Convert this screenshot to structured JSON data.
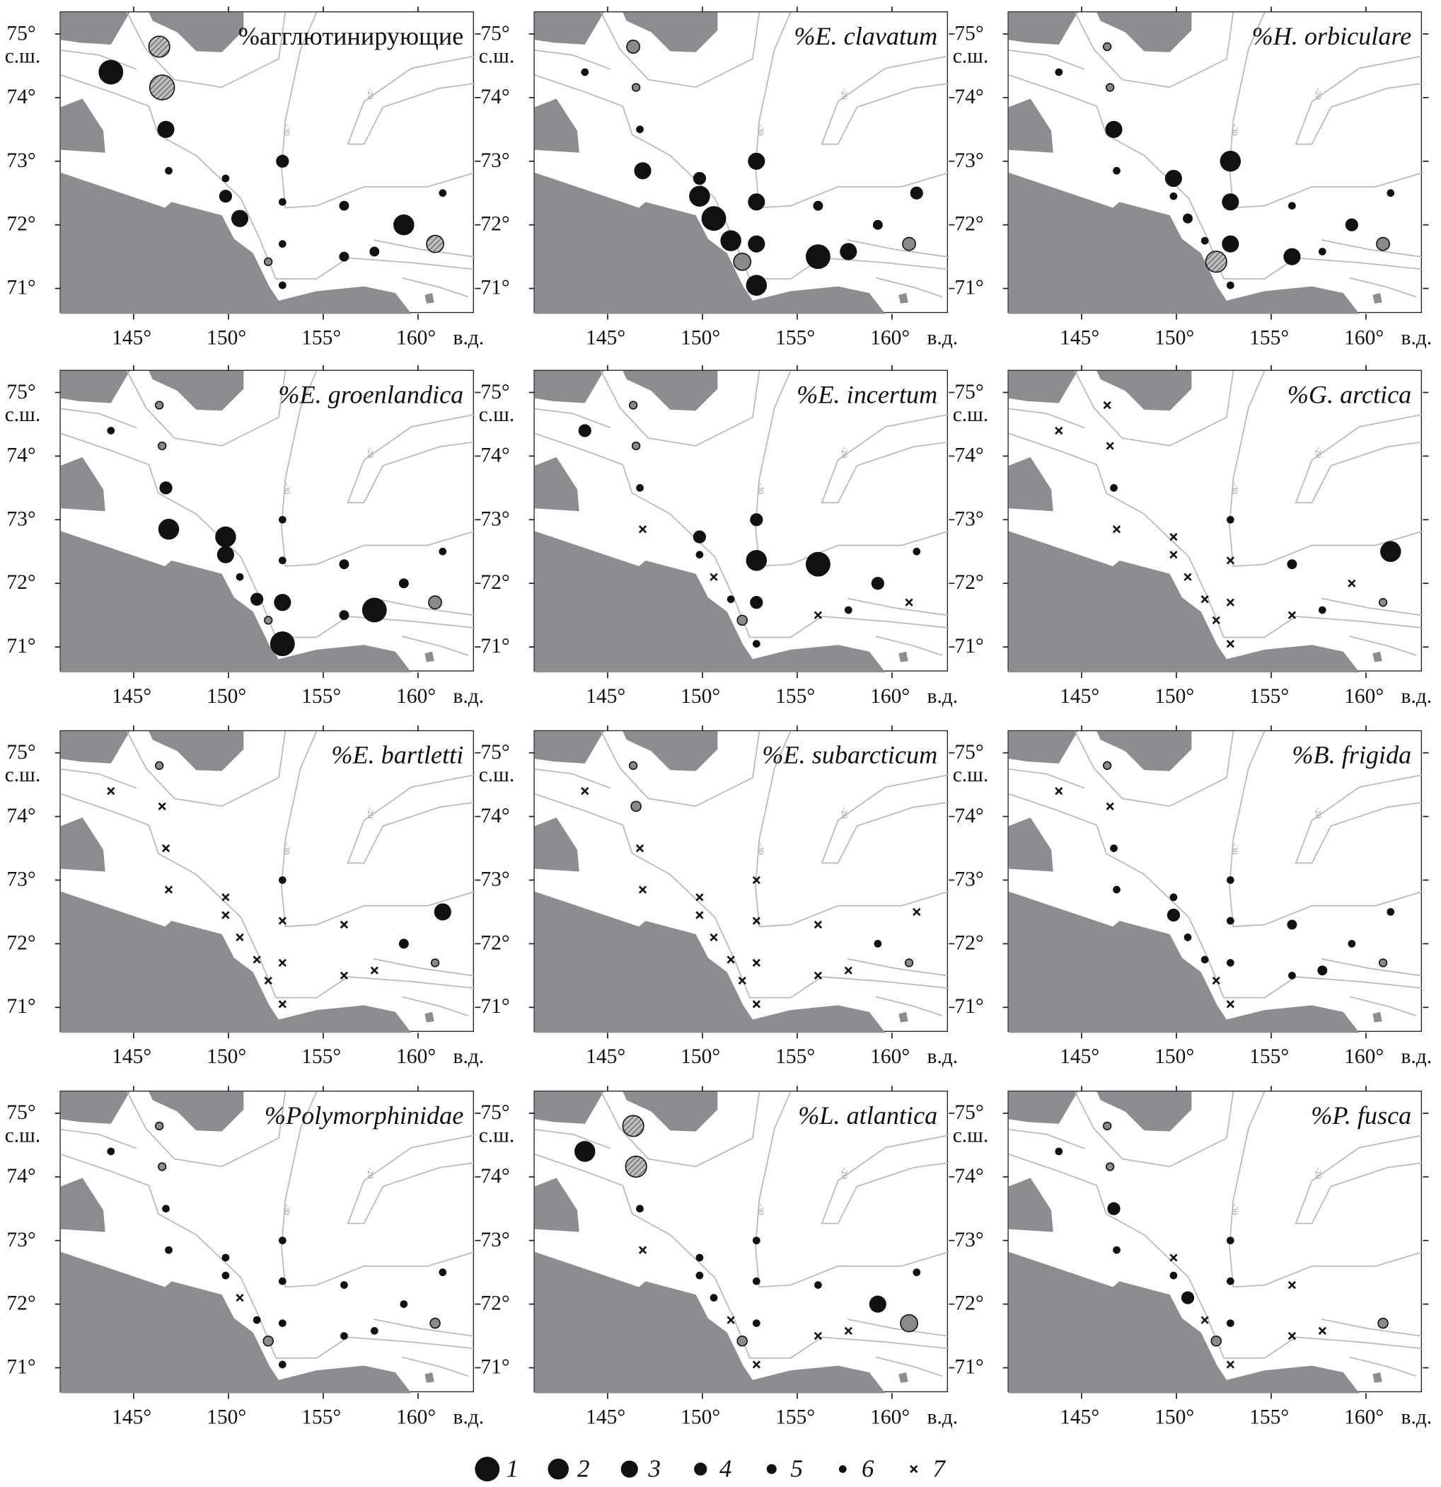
{
  "colors": {
    "land": "#8c8d90",
    "contour": "#b9b9b9",
    "marker": "#111111",
    "grey_marker": "#8a8a8a",
    "frame": "#222222"
  },
  "axes": {
    "lat_ticks": [
      {
        "value": 75,
        "label": "75°"
      },
      {
        "value": 74,
        "label": "74°"
      },
      {
        "value": 73,
        "label": "73°"
      },
      {
        "value": 72,
        "label": "72°"
      },
      {
        "value": 71,
        "label": "71°"
      }
    ],
    "lat_unit": "с.ш.",
    "lon_ticks": [
      {
        "value": 145,
        "label": "145°"
      },
      {
        "value": 150,
        "label": "150°"
      },
      {
        "value": 155,
        "label": "155°"
      },
      {
        "value": 160,
        "label": "160°"
      }
    ],
    "lon_unit": "в.д.",
    "lon_range": [
      141.15,
      163.0
    ],
    "lat_range": [
      70.6,
      75.34
    ]
  },
  "contour_labels": [
    "-30",
    "-20"
  ],
  "stations": [
    [
      143.8,
      74.4
    ],
    [
      146.35,
      74.8
    ],
    [
      146.5,
      74.16
    ],
    [
      146.7,
      73.5
    ],
    [
      146.85,
      72.85
    ],
    [
      149.85,
      72.73
    ],
    [
      149.85,
      72.45
    ],
    [
      150.6,
      72.1
    ],
    [
      151.5,
      71.75
    ],
    [
      152.1,
      71.42
    ],
    [
      152.85,
      73.0
    ],
    [
      152.85,
      72.36
    ],
    [
      152.85,
      71.7
    ],
    [
      152.85,
      71.05
    ],
    [
      156.1,
      72.3
    ],
    [
      156.1,
      71.5
    ],
    [
      157.7,
      71.58
    ],
    [
      159.25,
      72.0
    ],
    [
      160.9,
      71.7
    ],
    [
      161.3,
      72.5
    ]
  ],
  "marker_key": "class 1-6 = circle size (1 largest), 7 = cross; suffix h = hatched, g = grey",
  "panels": [
    {
      "title": "%агглютинирующие",
      "italic": false,
      "markers": [
        "1",
        "2h",
        "1h",
        "3",
        "6",
        "6",
        "4",
        "3",
        "",
        "6g",
        "4",
        "6",
        "6",
        "6",
        "5",
        "5",
        "5",
        "2",
        "3h",
        "6"
      ]
    },
    {
      "title": "%E. clavatum",
      "italic": true,
      "markers": [
        "6",
        "4g",
        "6g",
        "6",
        "3",
        "4",
        "2",
        "1",
        "2",
        "3g",
        "3",
        "3",
        "3",
        "2",
        "5",
        "1",
        "3",
        "5",
        "4g",
        "4"
      ]
    },
    {
      "title": "%H. orbiculare",
      "italic": true,
      "markers": [
        "6",
        "6g",
        "6g",
        "3",
        "6",
        "3",
        "6",
        "5",
        "6",
        "2h",
        "2",
        "3",
        "3",
        "6",
        "6",
        "3",
        "6",
        "4",
        "4g",
        "6"
      ]
    },
    {
      "title": "%E. groenlandica",
      "italic": true,
      "markers": [
        "6",
        "6g",
        "6g",
        "4",
        "2",
        "2",
        "3",
        "6",
        "4",
        "6g",
        "6",
        "6",
        "3",
        "1",
        "5",
        "5",
        "1",
        "5",
        "4g",
        "6"
      ]
    },
    {
      "title": "%E. incertum",
      "italic": true,
      "markers": [
        "4",
        "6g",
        "6g",
        "6",
        "7",
        "4",
        "6",
        "7",
        "6",
        "5g",
        "4",
        "2",
        "4",
        "6",
        "1",
        "7",
        "6",
        "4",
        "7",
        "6"
      ]
    },
    {
      "title": "%G. arctica",
      "italic": true,
      "markers": [
        "7",
        "7",
        "7",
        "6",
        "7",
        "7",
        "7",
        "7",
        "7",
        "7",
        "6",
        "7",
        "7",
        "7",
        "5",
        "7",
        "6",
        "7",
        "6g",
        "2"
      ]
    },
    {
      "title": "%E. bartletti",
      "italic": true,
      "markers": [
        "7",
        "6g",
        "7",
        "7",
        "7",
        "7",
        "7",
        "7",
        "7",
        "7",
        "6",
        "7",
        "7",
        "7",
        "7",
        "7",
        "7",
        "5",
        "6g",
        "3"
      ]
    },
    {
      "title": "%E. subarcticum",
      "italic": true,
      "markers": [
        "7",
        "6g",
        "5g",
        "7",
        "7",
        "7",
        "7",
        "7",
        "7",
        "7",
        "7",
        "7",
        "7",
        "7",
        "7",
        "7",
        "7",
        "6",
        "6g",
        "7"
      ]
    },
    {
      "title": "%B. frigida",
      "italic": true,
      "markers": [
        "7",
        "6g",
        "7",
        "6",
        "6",
        "6",
        "4",
        "6",
        "6",
        "7",
        "6",
        "6",
        "6",
        "7",
        "5",
        "6",
        "5",
        "6",
        "6g",
        "6"
      ]
    },
    {
      "title": "%Polymorphinidae",
      "italic": true,
      "markers": [
        "6",
        "6g",
        "6g",
        "6",
        "6",
        "6",
        "6",
        "7",
        "6",
        "5g",
        "6",
        "6",
        "6",
        "6",
        "6",
        "6",
        "6",
        "6",
        "5g",
        "6"
      ]
    },
    {
      "title": "%L. atlantica",
      "italic": true,
      "markers": [
        "2",
        "2h",
        "2h",
        "6",
        "7",
        "6",
        "6",
        "6",
        "7",
        "5g",
        "6",
        "6",
        "6",
        "7",
        "6",
        "7",
        "7",
        "3",
        "3g",
        "6"
      ]
    },
    {
      "title": "%P. fusca",
      "italic": true,
      "markers": [
        "6",
        "6g",
        "6g",
        "4",
        "6",
        "7",
        "6",
        "4",
        "7",
        "5g",
        "6",
        "6",
        "6",
        "7",
        "7",
        "7",
        "7",
        "",
        "5g",
        ""
      ]
    }
  ],
  "legend": [
    {
      "class": "1",
      "label": "1"
    },
    {
      "class": "2",
      "label": "2"
    },
    {
      "class": "3",
      "label": "3"
    },
    {
      "class": "4",
      "label": "4"
    },
    {
      "class": "5",
      "label": "5"
    },
    {
      "class": "6",
      "label": "6"
    },
    {
      "class": "7",
      "label": "7"
    }
  ]
}
